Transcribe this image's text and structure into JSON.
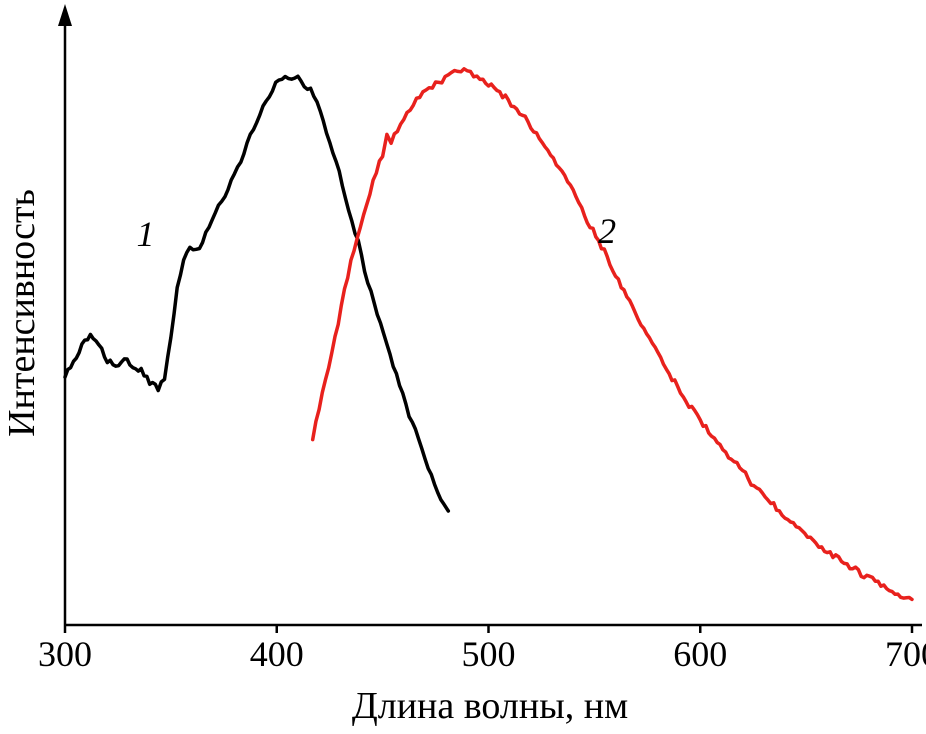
{
  "figure": {
    "background": "#ffffff",
    "axis_color": "#000000"
  },
  "chart_data": {
    "type": "line",
    "title": "",
    "xlabel": "Длина волны, нм",
    "ylabel": "Интенсивность",
    "grid": false,
    "legend": "none",
    "x_axis": {
      "min": 300,
      "max": 700,
      "ticks": [
        300,
        400,
        500,
        600,
        700
      ],
      "tick_labels": [
        "300",
        "400",
        "500",
        "600",
        "700"
      ]
    },
    "y_axis": {
      "min": 0,
      "max": 1,
      "ticks": []
    },
    "noise_amplitude": 0.005,
    "series": [
      {
        "name": "curve-1",
        "label": "1",
        "color": "#000000",
        "points": [
          [
            300,
            0.435
          ],
          [
            304,
            0.46
          ],
          [
            308,
            0.49
          ],
          [
            312,
            0.505
          ],
          [
            316,
            0.49
          ],
          [
            320,
            0.465
          ],
          [
            324,
            0.455
          ],
          [
            328,
            0.465
          ],
          [
            332,
            0.455
          ],
          [
            336,
            0.445
          ],
          [
            340,
            0.425
          ],
          [
            344,
            0.415
          ],
          [
            347,
            0.43
          ],
          [
            350,
            0.5
          ],
          [
            353,
            0.59
          ],
          [
            356,
            0.645
          ],
          [
            359,
            0.66
          ],
          [
            362,
            0.655
          ],
          [
            365,
            0.675
          ],
          [
            368,
            0.7
          ],
          [
            371,
            0.72
          ],
          [
            374,
            0.745
          ],
          [
            377,
            0.765
          ],
          [
            380,
            0.79
          ],
          [
            383,
            0.815
          ],
          [
            386,
            0.845
          ],
          [
            389,
            0.87
          ],
          [
            392,
            0.895
          ],
          [
            395,
            0.92
          ],
          [
            398,
            0.94
          ],
          [
            401,
            0.955
          ],
          [
            404,
            0.965
          ],
          [
            407,
            0.955
          ],
          [
            410,
            0.96
          ],
          [
            413,
            0.945
          ],
          [
            416,
            0.94
          ],
          [
            419,
            0.915
          ],
          [
            422,
            0.885
          ],
          [
            425,
            0.85
          ],
          [
            428,
            0.815
          ],
          [
            431,
            0.775
          ],
          [
            434,
            0.73
          ],
          [
            437,
            0.69
          ],
          [
            440,
            0.65
          ],
          [
            443,
            0.6
          ],
          [
            446,
            0.565
          ],
          [
            449,
            0.53
          ],
          [
            452,
            0.495
          ],
          [
            455,
            0.455
          ],
          [
            458,
            0.42
          ],
          [
            461,
            0.385
          ],
          [
            464,
            0.355
          ],
          [
            467,
            0.325
          ],
          [
            470,
            0.29
          ],
          [
            473,
            0.26
          ],
          [
            476,
            0.235
          ],
          [
            479,
            0.21
          ],
          [
            481,
            0.2
          ]
        ]
      },
      {
        "name": "curve-2",
        "label": "2",
        "color": "#e8211d",
        "points": [
          [
            417,
            0.33
          ],
          [
            420,
            0.38
          ],
          [
            423,
            0.43
          ],
          [
            426,
            0.48
          ],
          [
            429,
            0.53
          ],
          [
            432,
            0.585
          ],
          [
            435,
            0.635
          ],
          [
            438,
            0.68
          ],
          [
            441,
            0.72
          ],
          [
            444,
            0.76
          ],
          [
            447,
            0.795
          ],
          [
            450,
            0.825
          ],
          [
            452,
            0.86
          ],
          [
            454,
            0.845
          ],
          [
            457,
            0.87
          ],
          [
            460,
            0.89
          ],
          [
            463,
            0.905
          ],
          [
            466,
            0.92
          ],
          [
            469,
            0.935
          ],
          [
            472,
            0.94
          ],
          [
            475,
            0.95
          ],
          [
            478,
            0.955
          ],
          [
            481,
            0.965
          ],
          [
            484,
            0.97
          ],
          [
            487,
            0.975
          ],
          [
            490,
            0.97
          ],
          [
            493,
            0.965
          ],
          [
            496,
            0.96
          ],
          [
            500,
            0.95
          ],
          [
            504,
            0.94
          ],
          [
            508,
            0.925
          ],
          [
            512,
            0.91
          ],
          [
            516,
            0.895
          ],
          [
            520,
            0.875
          ],
          [
            524,
            0.855
          ],
          [
            528,
            0.835
          ],
          [
            532,
            0.81
          ],
          [
            536,
            0.785
          ],
          [
            540,
            0.76
          ],
          [
            544,
            0.73
          ],
          [
            548,
            0.7
          ],
          [
            552,
            0.675
          ],
          [
            556,
            0.645
          ],
          [
            560,
            0.615
          ],
          [
            564,
            0.585
          ],
          [
            568,
            0.555
          ],
          [
            572,
            0.53
          ],
          [
            576,
            0.5
          ],
          [
            580,
            0.475
          ],
          [
            584,
            0.45
          ],
          [
            588,
            0.425
          ],
          [
            592,
            0.4
          ],
          [
            596,
            0.38
          ],
          [
            600,
            0.36
          ],
          [
            604,
            0.34
          ],
          [
            608,
            0.32
          ],
          [
            612,
            0.3
          ],
          [
            616,
            0.285
          ],
          [
            620,
            0.27
          ],
          [
            624,
            0.25
          ],
          [
            628,
            0.235
          ],
          [
            632,
            0.22
          ],
          [
            636,
            0.205
          ],
          [
            640,
            0.19
          ],
          [
            644,
            0.175
          ],
          [
            648,
            0.165
          ],
          [
            652,
            0.15
          ],
          [
            656,
            0.14
          ],
          [
            660,
            0.13
          ],
          [
            664,
            0.12
          ],
          [
            668,
            0.11
          ],
          [
            672,
            0.1
          ],
          [
            676,
            0.09
          ],
          [
            680,
            0.082
          ],
          [
            684,
            0.074
          ],
          [
            688,
            0.066
          ],
          [
            692,
            0.058
          ],
          [
            696,
            0.05
          ],
          [
            700,
            0.045
          ]
        ]
      }
    ],
    "annotations": [
      {
        "text": "1",
        "x": 338,
        "y": 0.665
      },
      {
        "text": "2",
        "x": 556,
        "y": 0.67
      }
    ]
  }
}
